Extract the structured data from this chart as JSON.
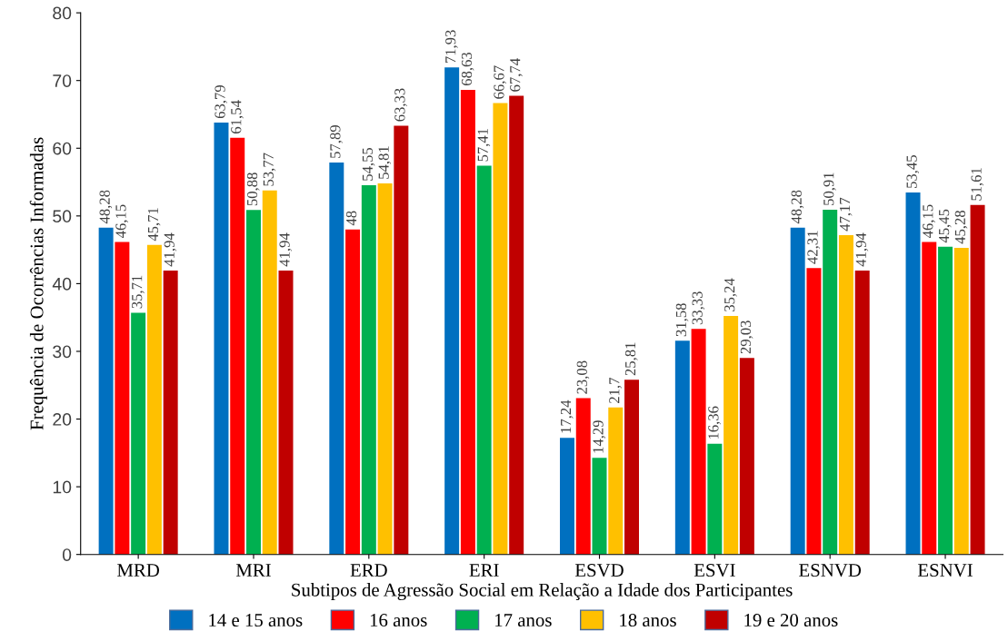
{
  "chart_data": {
    "type": "bar",
    "xlabel": "Subtipos de Agressão Social em Relação a Idade dos Participantes",
    "ylabel": "Frequência de Ocorrências Informadas",
    "categories": [
      "MRD",
      "MRI",
      "ERD",
      "ERI",
      "ESVD",
      "ESVI",
      "ESNVD",
      "ESNVI"
    ],
    "series": [
      {
        "name": "14 e 15 anos",
        "color": "#0070c0",
        "values": [
          48.28,
          63.79,
          57.89,
          71.93,
          17.24,
          31.58,
          48.28,
          53.45
        ],
        "value_labels": [
          "48,28",
          "63,79",
          "57,89",
          "71,93",
          "17,24",
          "31,58",
          "48,28",
          "53,45"
        ]
      },
      {
        "name": "16 anos",
        "color": "#ff0000",
        "values": [
          46.15,
          61.54,
          48,
          68.63,
          23.08,
          33.33,
          42.31,
          46.15
        ],
        "value_labels": [
          "46,15",
          "61,54",
          "48",
          "68,63",
          "23,08",
          "33,33",
          "42,31",
          "46,15"
        ]
      },
      {
        "name": "17 anos",
        "color": "#00b050",
        "values": [
          35.71,
          50.88,
          54.55,
          57.41,
          14.29,
          16.36,
          50.91,
          45.45
        ],
        "value_labels": [
          "35,71",
          "50,88",
          "54,55",
          "57,41",
          "14,29",
          "16,36",
          "50,91",
          "45,45"
        ]
      },
      {
        "name": "18 anos",
        "color": "#ffc000",
        "values": [
          45.71,
          53.77,
          54.81,
          66.67,
          21.7,
          35.24,
          47.17,
          45.28
        ],
        "value_labels": [
          "45,71",
          "53,77",
          "54,81",
          "66,67",
          "21,7",
          "35,24",
          "47,17",
          "45,28"
        ]
      },
      {
        "name": "19 e 20 anos",
        "color": "#c00000",
        "values": [
          41.94,
          41.94,
          63.33,
          67.74,
          25.81,
          29.03,
          41.94,
          51.61
        ],
        "value_labels": [
          "41,94",
          "41,94",
          "63,33",
          "67,74",
          "25,81",
          "29,03",
          "41,94",
          "51,61"
        ]
      }
    ],
    "ylim": [
      0,
      80
    ],
    "yticks": [
      0,
      10,
      20,
      30,
      40,
      50,
      60,
      70,
      80
    ],
    "grid": false,
    "legend": "bottom"
  }
}
